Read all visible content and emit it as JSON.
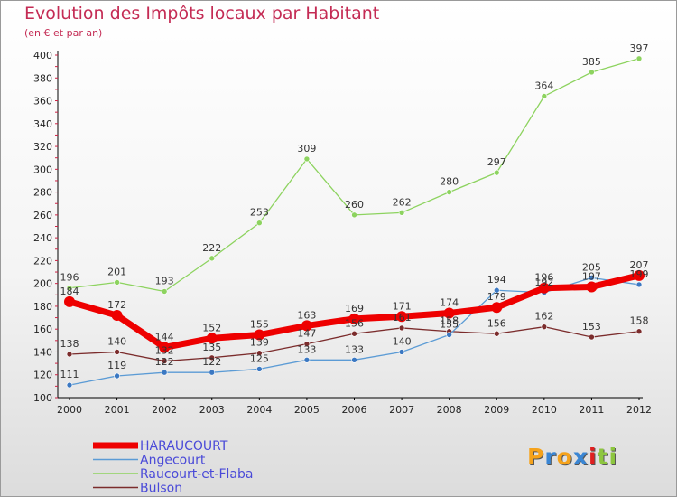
{
  "chart_data": {
    "type": "line",
    "title": "Evolution des Impôts locaux par Habitant",
    "subtitle": "(en € et par an)",
    "x": [
      "2000",
      "2001",
      "2002",
      "2003",
      "2004",
      "2005",
      "2006",
      "2007",
      "2008",
      "2009",
      "2010",
      "2011",
      "2012"
    ],
    "ylim": [
      100,
      400
    ],
    "yticks": [
      100,
      120,
      140,
      160,
      180,
      200,
      220,
      240,
      260,
      280,
      300,
      320,
      340,
      360,
      380,
      400
    ],
    "grid": false,
    "legend_position": "bottom-left",
    "series": [
      {
        "name": "Raucourt-et-Flaba",
        "color": "#8dd35f",
        "point_color": "#8dd35f",
        "width": 1.3,
        "values": [
          196,
          201,
          193,
          222,
          253,
          309,
          260,
          262,
          280,
          297,
          364,
          385,
          397
        ],
        "labels": [
          "196",
          "201",
          "193",
          "222",
          "253",
          "309",
          "260",
          "262",
          "280",
          "297",
          "364",
          "385",
          "397"
        ]
      },
      {
        "name": "Bulson",
        "color": "#7b2c2c",
        "point_color": "#7b2c2c",
        "width": 1.3,
        "values": [
          138,
          140,
          132,
          135,
          139,
          147,
          156,
          161,
          158,
          156,
          162,
          153,
          158
        ],
        "labels": [
          "138",
          "140",
          "132",
          "135",
          "139",
          "147",
          "156",
          "161",
          "158",
          "156",
          "162",
          "153",
          "158"
        ]
      },
      {
        "name": "Angecourt",
        "color": "#5b9bd5",
        "point_color": "#3b78c2",
        "width": 1.3,
        "values": [
          111,
          119,
          122,
          122,
          125,
          133,
          133,
          140,
          155,
          194,
          192,
          205,
          199
        ],
        "labels": [
          "111",
          "119",
          "122",
          "122",
          "125",
          "133",
          "133",
          "140",
          "155",
          "194",
          "192",
          "205",
          "199"
        ]
      },
      {
        "name": "HARAUCOURT",
        "color": "#ee0000",
        "point_color": "#ee0000",
        "width": 7,
        "values": [
          184,
          172,
          144,
          152,
          155,
          163,
          169,
          171,
          174,
          179,
          196,
          197,
          207
        ],
        "labels": [
          "184",
          "172",
          "144",
          "152",
          "155",
          "163",
          "169",
          "171",
          "174",
          "179",
          "196",
          "197",
          "207"
        ]
      }
    ]
  },
  "legend": [
    {
      "name": "HARAUCOURT",
      "color": "#ee0000"
    },
    {
      "name": "Angecourt",
      "color": "#5b9bd5"
    },
    {
      "name": "Raucourt-et-Flaba",
      "color": "#8dd35f"
    },
    {
      "name": "Bulson",
      "color": "#7b2c2c"
    }
  ],
  "legend_text_color": "#4a4ad8",
  "logo": {
    "letters": [
      "P",
      "r",
      "o",
      "x",
      "i",
      "t",
      "i"
    ],
    "colors": [
      "#f5a21b",
      "#3a86d4",
      "#f5a21b",
      "#3a86d4",
      "#e02020",
      "#8dc63f",
      "#8dc63f"
    ]
  }
}
